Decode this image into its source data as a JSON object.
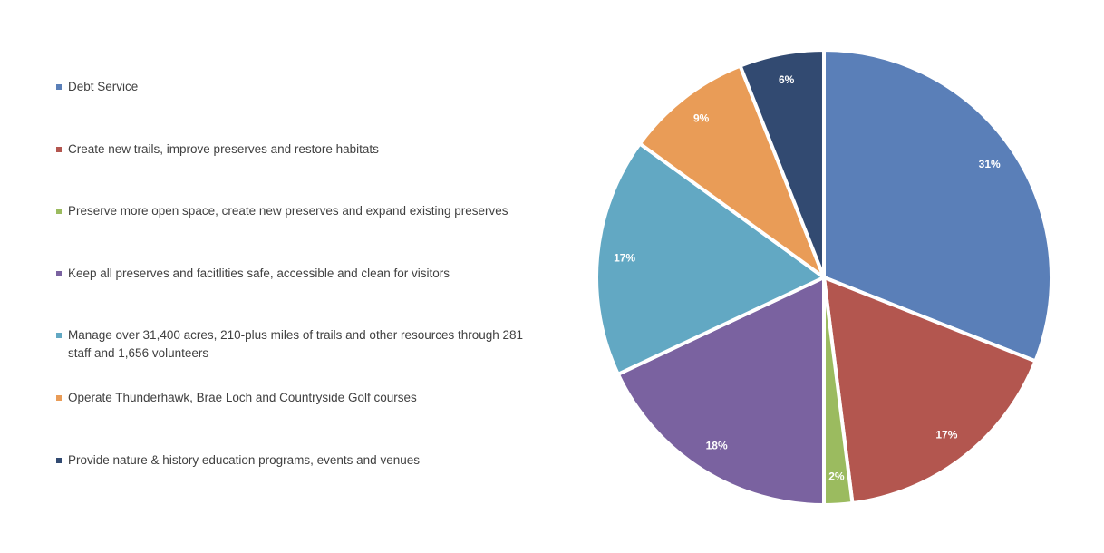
{
  "chart_data": {
    "type": "pie",
    "categories": [
      "Debt Service",
      "Create new trails, improve preserves and restore habitats",
      "Preserve more open space, create new preserves and expand existing preserves",
      "Keep all preserves and facitlities safe, accessible and clean for visitors",
      "Manage over 31,400 acres, 210-plus miles of trails and other resources through 281 staff and 1,656 volunteers",
      "Operate Thunderhawk, Brae Loch and Countryside Golf courses",
      "Provide nature & history education programs, events and venues"
    ],
    "values": [
      31,
      17,
      2,
      18,
      17,
      9,
      6
    ],
    "value_labels": [
      "31%",
      "17%",
      "2%",
      "18%",
      "17%",
      "9%",
      "6%"
    ],
    "colors": [
      "#5a7fb8",
      "#b3564f",
      "#9bbb5f",
      "#7a62a0",
      "#62a8c3",
      "#e99c57",
      "#324a71"
    ],
    "legend": "left"
  }
}
